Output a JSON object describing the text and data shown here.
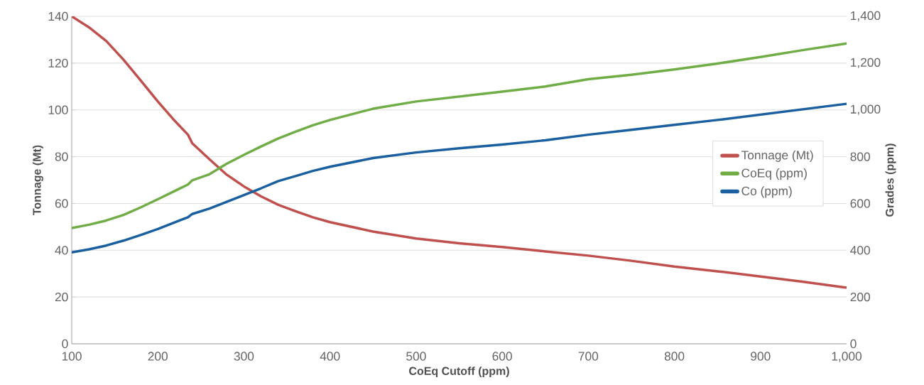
{
  "chart_data": {
    "type": "line",
    "xlabel": "CoEq Cutoff (ppm)",
    "ylabel": "Tonnage (Mt)",
    "y2label": "Grades (ppm)",
    "x": [
      100,
      120,
      140,
      160,
      180,
      200,
      220,
      235,
      240,
      260,
      280,
      300,
      320,
      340,
      360,
      380,
      400,
      450,
      500,
      550,
      600,
      650,
      700,
      750,
      800,
      850,
      900,
      950,
      1000
    ],
    "xlim": [
      100,
      1000
    ],
    "xticks": [
      100,
      200,
      300,
      400,
      500,
      600,
      700,
      800,
      900,
      {
        "value": 1000,
        "label": "1,000"
      }
    ],
    "ylim": [
      0,
      140
    ],
    "yticks": [
      0,
      20,
      40,
      60,
      80,
      100,
      120,
      140
    ],
    "y2lim": [
      0,
      1400
    ],
    "y2ticks": [
      0,
      200,
      400,
      600,
      800,
      {
        "value": 1000,
        "label": "1,000"
      },
      {
        "value": 1200,
        "label": "1,200"
      },
      {
        "value": 1400,
        "label": "1,400"
      }
    ],
    "grid": "y",
    "legend": "right",
    "series": [
      {
        "name": "Tonnage (Mt)",
        "color": "#c0504d",
        "values": [
          140,
          135.3,
          129.5,
          121.5,
          112.6,
          103.6,
          95.2,
          89.4,
          85.7,
          78.9,
          72.3,
          67.3,
          63.0,
          59.4,
          56.7,
          54.1,
          52.0,
          48,
          45,
          43,
          41.4,
          39.5,
          37.7,
          35.5,
          33.0,
          31,
          28.8,
          26.5,
          24.0
        ]
      },
      {
        "name": "CoEq (ppm)",
        "color": "#70ad47",
        "axis": "y2",
        "values": [
          495,
          509,
          527,
          551,
          583,
          618,
          654,
          681,
          699,
          725,
          770,
          808,
          844,
          878,
          907,
          934,
          957,
          1005,
          1036,
          1057,
          1078,
          1100,
          1131,
          1150,
          1173,
          1198,
          1226,
          1256,
          1284
        ]
      },
      {
        "name": "Co (ppm)",
        "color": "#1a5fa0",
        "axis": "y2",
        "values": [
          391,
          404,
          420,
          441,
          465,
          491,
          520,
          541,
          555,
          578,
          607,
          636,
          665,
          696,
          717,
          739,
          757,
          794,
          818,
          836,
          852,
          870,
          894,
          915,
          936,
          957,
          980,
          1003,
          1026
        ]
      }
    ]
  }
}
